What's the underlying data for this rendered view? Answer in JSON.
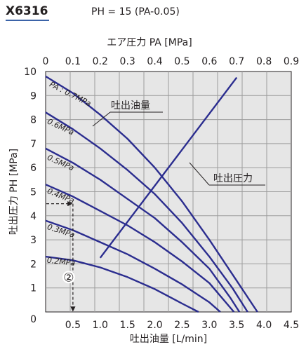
{
  "header": {
    "model": "X6316",
    "formula": "PH = 15 (PA-0.05)"
  },
  "chart_data": {
    "type": "line",
    "top_axis": {
      "label": "エア圧力 PA [MPa]",
      "ticks": [
        "0",
        "0.1",
        "0.2",
        "0.3",
        "0.4",
        "0.5",
        "0.6",
        "0.7",
        "0.8",
        "0.9"
      ],
      "range": [
        0,
        0.9
      ]
    },
    "xlabel": "吐出油量 [L/min]",
    "x_ticks": [
      "0.5",
      "1.0",
      "1.5",
      "2.0",
      "2.5",
      "3.0",
      "3.5",
      "4.0",
      "4.5"
    ],
    "xlim": [
      0,
      4.5
    ],
    "ylabel": "吐出圧力 PH [MPa]",
    "y_ticks": [
      "0",
      "1",
      "2",
      "3",
      "4",
      "5",
      "6",
      "7",
      "8",
      "9",
      "10"
    ],
    "ylim": [
      0,
      10
    ],
    "grid": true,
    "colors": {
      "curve": "#2b2d8f",
      "grid": "#9c9c9c",
      "plot_bg": "#e6e6e6",
      "marker": "#231f20"
    },
    "flow_curves": [
      {
        "name": "PA : 0.7MPa",
        "points": [
          [
            0,
            9.8
          ],
          [
            0.5,
            9.1
          ],
          [
            1.0,
            8.2
          ],
          [
            1.5,
            7.2
          ],
          [
            2.0,
            6.0
          ],
          [
            2.5,
            4.6
          ],
          [
            3.0,
            3.0
          ],
          [
            3.5,
            1.3
          ],
          [
            3.88,
            0
          ]
        ]
      },
      {
        "name": "0.6MPa",
        "points": [
          [
            0,
            8.3
          ],
          [
            0.5,
            7.6
          ],
          [
            1.0,
            6.8
          ],
          [
            1.5,
            5.9
          ],
          [
            2.0,
            4.9
          ],
          [
            2.5,
            3.7
          ],
          [
            3.0,
            2.3
          ],
          [
            3.42,
            1.0
          ],
          [
            3.7,
            0
          ]
        ]
      },
      {
        "name": "0.5MPa",
        "points": [
          [
            0,
            6.8
          ],
          [
            0.5,
            6.2
          ],
          [
            1.0,
            5.5
          ],
          [
            1.5,
            4.7
          ],
          [
            2.0,
            3.9
          ],
          [
            2.5,
            2.9
          ],
          [
            3.0,
            1.8
          ],
          [
            3.38,
            0.6
          ],
          [
            3.55,
            0
          ]
        ]
      },
      {
        "name": "0.4MPa",
        "points": [
          [
            0,
            5.3
          ],
          [
            0.5,
            4.8
          ],
          [
            1.0,
            4.2
          ],
          [
            1.5,
            3.6
          ],
          [
            2.0,
            2.9
          ],
          [
            2.5,
            2.1
          ],
          [
            3.0,
            1.2
          ],
          [
            3.45,
            0
          ]
        ]
      },
      {
        "name": "0.3MPa",
        "points": [
          [
            0,
            3.8
          ],
          [
            0.5,
            3.4
          ],
          [
            1.0,
            2.9
          ],
          [
            1.5,
            2.4
          ],
          [
            2.0,
            1.8
          ],
          [
            2.5,
            1.15
          ],
          [
            3.0,
            0.4
          ],
          [
            3.2,
            0
          ]
        ]
      },
      {
        "name": "0.2MPa",
        "points": [
          [
            0,
            2.3
          ],
          [
            0.5,
            2.15
          ],
          [
            1.0,
            1.85
          ],
          [
            1.5,
            1.45
          ],
          [
            2.0,
            0.95
          ],
          [
            2.5,
            0.35
          ],
          [
            2.8,
            0
          ]
        ]
      }
    ],
    "pressure_line": {
      "points": [
        [
          0.2,
          2.25
        ],
        [
          0.7,
          9.75
        ]
      ]
    },
    "annotations": {
      "flow_label": "吐出油量",
      "pressure_label": "吐出圧力",
      "marker": "②",
      "guide_point": [
        0.5,
        4.5
      ]
    }
  }
}
